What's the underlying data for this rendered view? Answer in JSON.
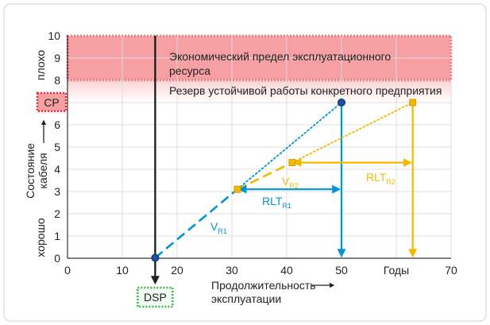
{
  "chart_data": {
    "type": "line",
    "title": "",
    "xlabel": "Продолжительность эксплуатации",
    "ylabel": "Состояние кабеля",
    "y_good_label": "хорошо",
    "y_bad_label": "плохо",
    "x_unit_label": "Годы",
    "xlim": [
      0,
      70
    ],
    "ylim": [
      0,
      10
    ],
    "x_ticks": [
      "0",
      "10",
      "20",
      "30",
      "40",
      "50",
      "70"
    ],
    "y_ticks": [
      "0",
      "1",
      "2",
      "3",
      "4",
      "5",
      "6",
      "7",
      "8",
      "9",
      "10"
    ],
    "grid": true,
    "zones": [
      {
        "name": "Экономический предел эксплуатационного ресурса",
        "y_range": [
          8,
          10
        ],
        "color": "#f6a0a4"
      },
      {
        "name": "Резерв устойчивой работы конкретного предприятия",
        "y_range": [
          7,
          8
        ],
        "color": "#fbd3d3"
      }
    ],
    "cp_label": "CP",
    "cp_value": 7,
    "dsp_label": "DSP",
    "dsp_x": 16,
    "points": [
      {
        "x": 16,
        "y": 0.02,
        "color": "#1f4fa3"
      },
      {
        "x": 31,
        "y": 3.1,
        "color": "#f5b800"
      },
      {
        "x": 41,
        "y": 4.3,
        "color": "#f5b800"
      },
      {
        "x": 50,
        "y": 7,
        "color": "#1f4fa3"
      },
      {
        "x": 63,
        "y": 7,
        "color": "#f5b800"
      }
    ],
    "series": [
      {
        "name": "V",
        "subscript": "R1",
        "x": [
          16,
          31
        ],
        "y": [
          0.02,
          3.1
        ],
        "color": "#0096d6",
        "style": "dashed"
      },
      {
        "name": "",
        "x": [
          31,
          50
        ],
        "y": [
          3.1,
          7
        ],
        "color": "#0096d6",
        "style": "dotted"
      },
      {
        "name": "V",
        "subscript": "R2",
        "x": [
          31,
          41
        ],
        "y": [
          3.1,
          4.3
        ],
        "color": "#f5b800",
        "style": "dashed"
      },
      {
        "name": "",
        "x": [
          41,
          63
        ],
        "y": [
          4.3,
          7
        ],
        "color": "#f5b800",
        "style": "dotted"
      }
    ],
    "rlt": [
      {
        "name": "RLT",
        "subscript": "R1",
        "x_range": [
          31,
          50
        ],
        "y": 3.1,
        "color": "#0096d6"
      },
      {
        "name": "RLT",
        "subscript": "R2",
        "x_range": [
          41,
          63
        ],
        "y": 4.3,
        "color": "#f5b800"
      }
    ],
    "drop_lines": [
      {
        "x": 50,
        "from_y": 7,
        "color": "#0096d6"
      },
      {
        "x": 63,
        "from_y": 7,
        "color": "#f5b800"
      }
    ],
    "colors": {
      "frame": "#d0d0d0",
      "axis": "#333333",
      "grid": "#dddddd",
      "dsp_box": "#3cb54a",
      "cp_box": "#e8323c",
      "text": "#222222"
    }
  }
}
